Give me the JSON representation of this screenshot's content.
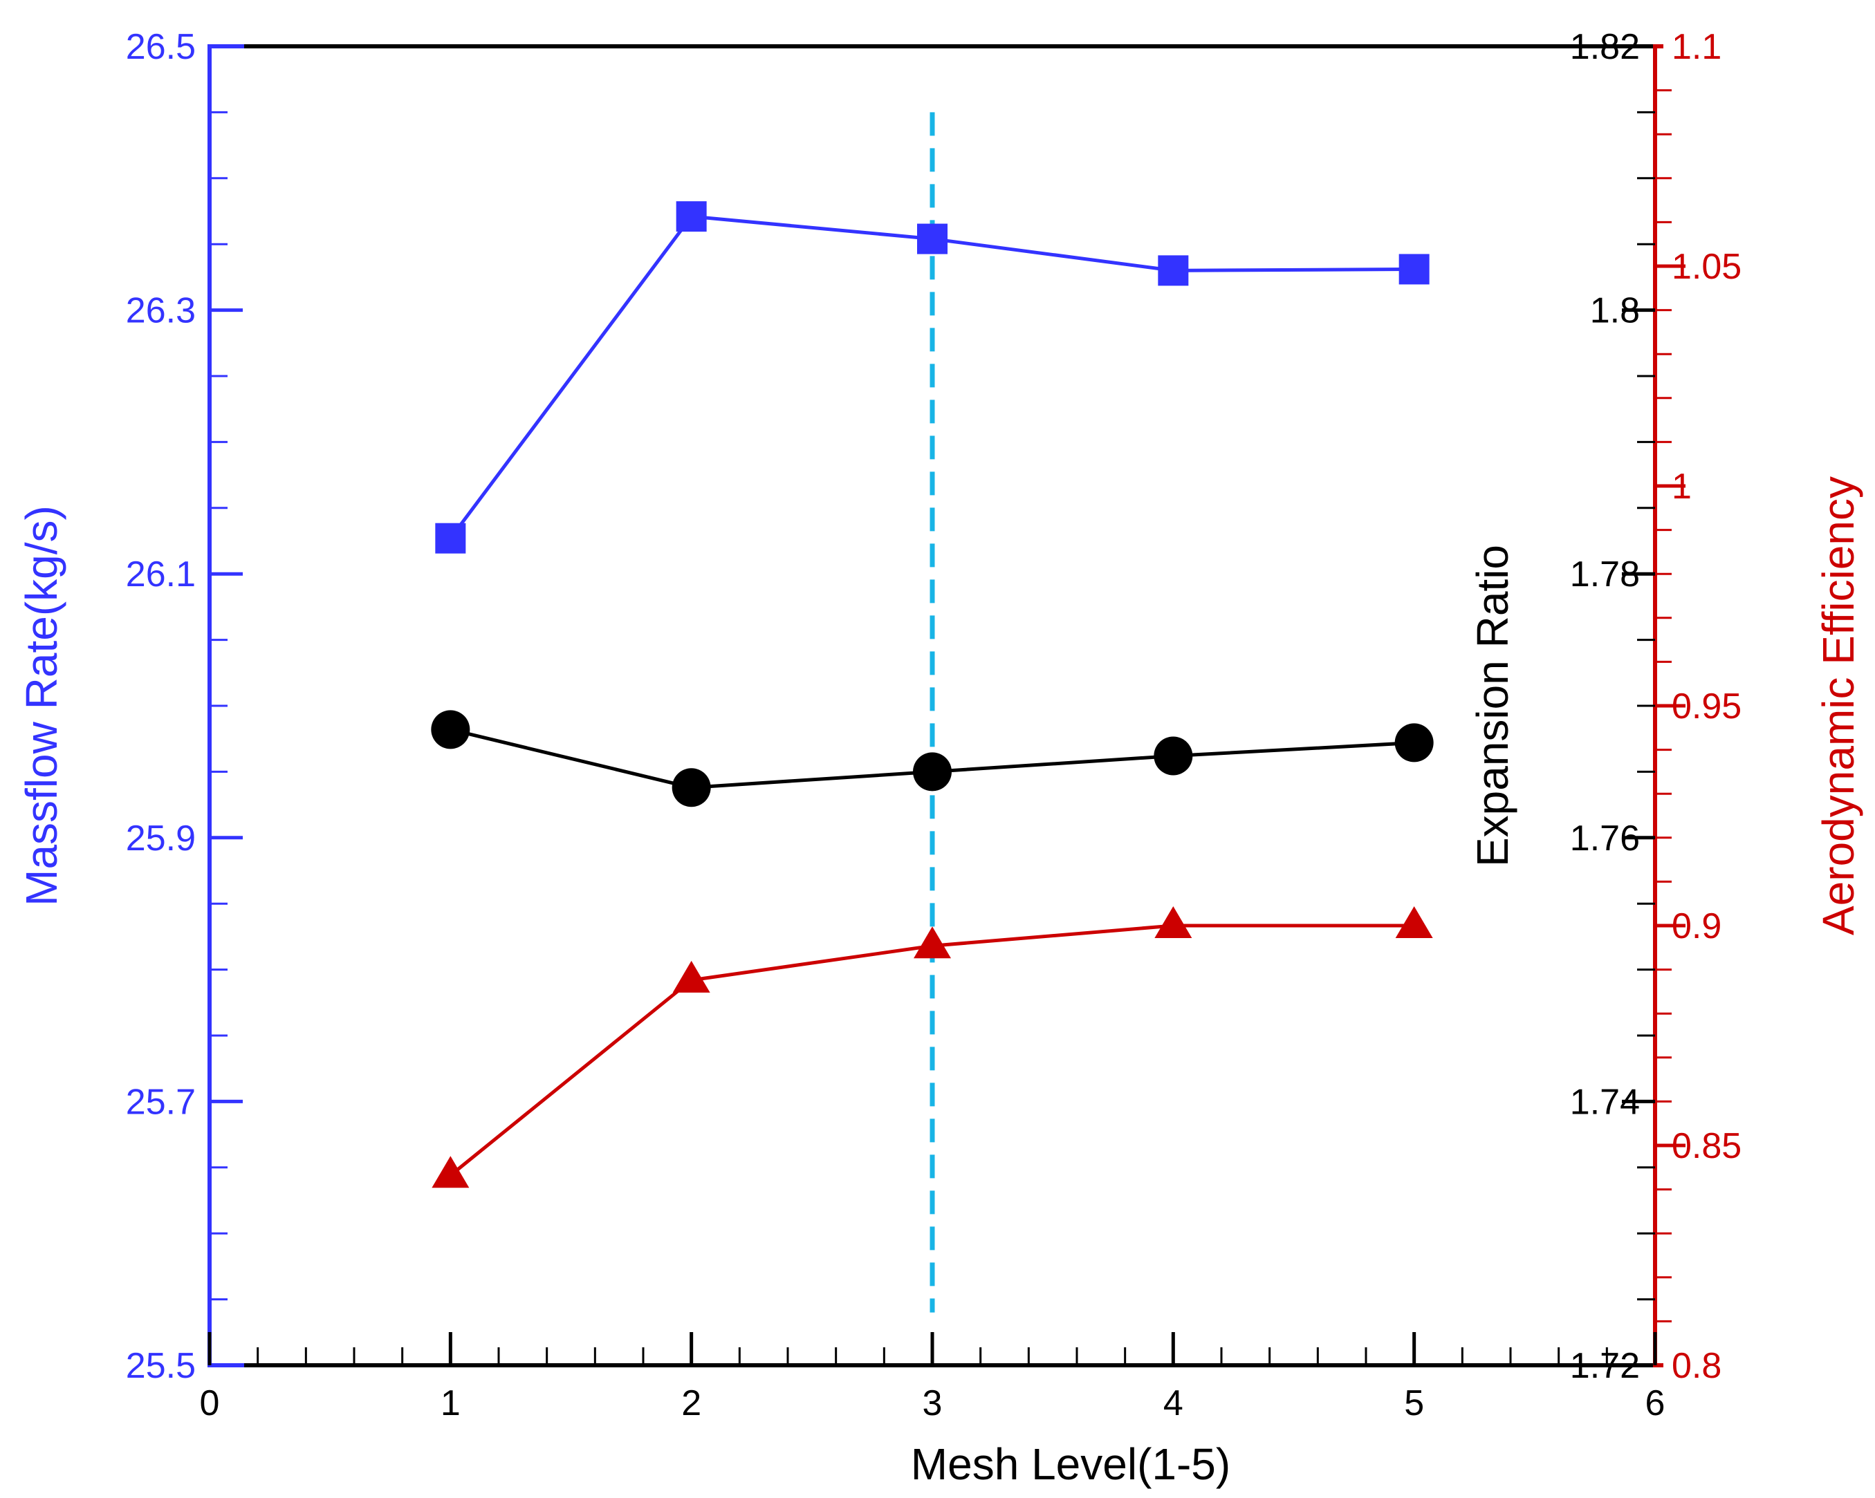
{
  "chart_data": {
    "type": "line",
    "title": "",
    "xlabel": "Mesh Level(1-5)",
    "xlim": [
      0,
      6
    ],
    "x_ticks": [
      "0",
      "1",
      "2",
      "3",
      "4",
      "5",
      "6"
    ],
    "x": [
      1,
      2,
      3,
      4,
      5
    ],
    "reference_line": {
      "x": 3,
      "y_from": 25.54,
      "y_to": 26.45,
      "style": "dashed",
      "color": "#18b4e6"
    },
    "axes": {
      "left": {
        "label": "Massflow Rate(kg/s)",
        "color": "#3333ff",
        "ylim": [
          25.5,
          26.5
        ],
        "ticks": [
          "25.5",
          "25.7",
          "25.9",
          "26.1",
          "26.3",
          "26.5"
        ]
      },
      "right_inner": {
        "label": "Expansion Ratio",
        "color": "#000000",
        "ylim": [
          1.72,
          1.82
        ],
        "ticks": [
          "1.72",
          "1.74",
          "1.76",
          "1.78",
          "1.8",
          "1.82"
        ]
      },
      "right_outer": {
        "label": "Aerodynamic Efficiency",
        "color": "#cc0000",
        "ylim": [
          0.8,
          1.1
        ],
        "ticks": [
          "0.8",
          "0.85",
          "0.9",
          "0.95",
          "1",
          "1.05",
          "1.1"
        ]
      }
    },
    "series": [
      {
        "name": "Massflow Rate(kg/s)",
        "axis": "left",
        "color": "#3333ff",
        "marker": "square",
        "values": [
          26.127,
          26.371,
          26.354,
          26.33,
          26.331
        ]
      },
      {
        "name": "Expansion Ratio",
        "axis": "right_inner",
        "color": "#000000",
        "marker": "circle",
        "values": [
          1.7682,
          1.7638,
          1.765,
          1.7662,
          1.7672
        ]
      },
      {
        "name": "Aerodynamic Efficiency",
        "axis": "right_outer",
        "color": "#cc0000",
        "marker": "triangle",
        "values": [
          0.8432,
          0.8876,
          0.8954,
          0.9,
          0.9
        ]
      }
    ]
  }
}
